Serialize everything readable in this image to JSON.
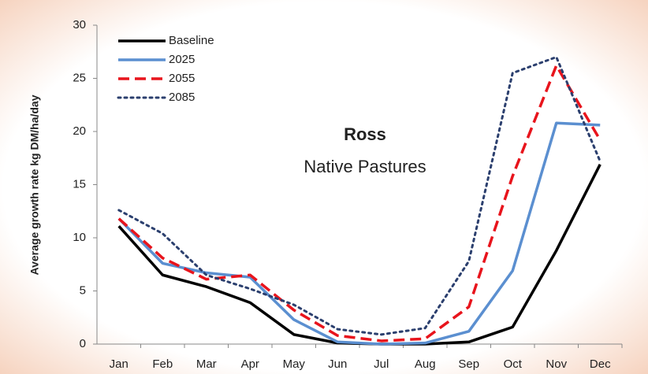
{
  "chart_data": {
    "type": "line",
    "title": "Ross",
    "subtitle": "Native Pastures",
    "y_label": "Average growth rate kg DM/ha/day",
    "categories": [
      "Jan",
      "Feb",
      "Mar",
      "Apr",
      "May",
      "Jun",
      "Jul",
      "Aug",
      "Sep",
      "Oct",
      "Nov",
      "Dec"
    ],
    "series": [
      {
        "name": "Baseline",
        "color": "#000000",
        "style": "solid",
        "values": [
          11.1,
          6.5,
          5.4,
          3.9,
          0.9,
          0.1,
          0,
          0,
          0.2,
          1.6,
          8.8,
          16.9
        ]
      },
      {
        "name": "2025",
        "color": "#5b8fd0",
        "style": "solid",
        "values": [
          11.8,
          7.6,
          6.7,
          6.3,
          2.3,
          0.2,
          0,
          0.1,
          1.2,
          6.9,
          20.8,
          20.6
        ]
      },
      {
        "name": "2055",
        "color": "#e8141c",
        "style": "dashed",
        "values": [
          11.8,
          8.1,
          6.1,
          6.5,
          3.2,
          0.8,
          0.3,
          0.5,
          3.5,
          15.8,
          26.2,
          19.2
        ]
      },
      {
        "name": "2085",
        "color": "#2b3f6e",
        "style": "dotted",
        "values": [
          12.6,
          10.4,
          6.5,
          5.2,
          3.7,
          1.4,
          0.9,
          1.5,
          7.8,
          25.5,
          27.0,
          17.2
        ]
      }
    ],
    "ylim": [
      0,
      30
    ],
    "yticks": [
      0,
      5,
      10,
      15,
      20,
      25,
      30
    ],
    "grid": false,
    "legend": "top-left"
  }
}
